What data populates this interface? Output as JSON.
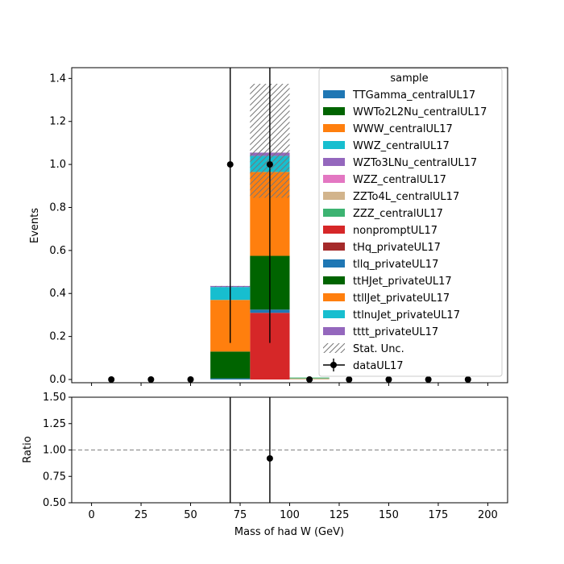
{
  "chart_data": {
    "type": "bar",
    "stacked": true,
    "xlabel": "Mass of had W (GeV)",
    "bin_edges": [
      0,
      20,
      40,
      60,
      80,
      100,
      120,
      140,
      160,
      180,
      200
    ],
    "x_ticks": [
      0,
      25,
      50,
      75,
      100,
      125,
      150,
      175,
      200
    ],
    "xlim": [
      -10,
      210
    ],
    "main": {
      "ylabel": "Events",
      "ylim": [
        -0.015,
        1.45
      ],
      "y_ticks": [
        "0.0",
        "0.2",
        "0.4",
        "0.6",
        "0.8",
        "1.0",
        "1.2",
        "1.4"
      ],
      "series": [
        {
          "name": "TTGamma_centralUL17",
          "color": "#1f77b4",
          "values": [
            0,
            0,
            0,
            0,
            0,
            0,
            0,
            0,
            0,
            0
          ]
        },
        {
          "name": "WWTo2L2Nu_centralUL17",
          "color": "#006400",
          "values": [
            0,
            0,
            0,
            0,
            0,
            0,
            0,
            0,
            0,
            0
          ]
        },
        {
          "name": "WWW_centralUL17",
          "color": "#ff7f0e",
          "values": [
            0,
            0,
            0,
            0,
            0,
            0,
            0,
            0,
            0,
            0
          ]
        },
        {
          "name": "WWZ_centralUL17",
          "color": "#17becf",
          "values": [
            0,
            0,
            0,
            0,
            0,
            0,
            0,
            0,
            0,
            0
          ]
        },
        {
          "name": "WZTo3LNu_centralUL17",
          "color": "#9467bd",
          "values": [
            0,
            0,
            0,
            0,
            0,
            0,
            0,
            0,
            0,
            0
          ]
        },
        {
          "name": "WZZ_centralUL17",
          "color": "#e377c2",
          "values": [
            0,
            0,
            0,
            0,
            0,
            0,
            0,
            0,
            0,
            0
          ]
        },
        {
          "name": "ZZTo4L_centralUL17",
          "color": "#d2b48c",
          "values": [
            0,
            0,
            0,
            0,
            0,
            0.005,
            0,
            0,
            0,
            0
          ]
        },
        {
          "name": "ZZZ_centralUL17",
          "color": "#3cb371",
          "values": [
            0,
            0,
            0,
            0,
            0,
            0.004,
            0,
            0,
            0,
            0
          ]
        },
        {
          "name": "nonpromptUL17",
          "color": "#d62728",
          "values": [
            0,
            0,
            0,
            0,
            0.31,
            0,
            0,
            0,
            0,
            0
          ]
        },
        {
          "name": "tHq_privateUL17",
          "color": "#a52a2a",
          "values": [
            0,
            0,
            0,
            0,
            0,
            0,
            0,
            0,
            0,
            0
          ]
        },
        {
          "name": "tllq_privateUL17",
          "color": "#1f77b4",
          "values": [
            0,
            0,
            0,
            0.005,
            0.015,
            0,
            0,
            0,
            0,
            0
          ]
        },
        {
          "name": "ttHJet_privateUL17",
          "color": "#006400",
          "values": [
            0,
            0,
            0,
            0.125,
            0.25,
            0,
            0,
            0,
            0,
            0
          ]
        },
        {
          "name": "ttllJet_privateUL17",
          "color": "#ff7f0e",
          "values": [
            0,
            0,
            0,
            0.24,
            0.39,
            0,
            0,
            0,
            0,
            0
          ]
        },
        {
          "name": "ttlnuJet_privateUL17",
          "color": "#17becf",
          "values": [
            0,
            0,
            0,
            0.06,
            0.075,
            0,
            0,
            0,
            0,
            0
          ]
        },
        {
          "name": "tttt_privateUL17",
          "color": "#9467bd",
          "values": [
            0,
            0,
            0,
            0.005,
            0.015,
            0,
            0,
            0,
            0,
            0
          ]
        }
      ],
      "stat_unc": {
        "name": "Stat. Unc.",
        "low": [
          0,
          0,
          0,
          0.43,
          0.845,
          0.009,
          0,
          0,
          0,
          0
        ],
        "high": [
          0,
          0,
          0,
          0.435,
          1.375,
          0.009,
          0,
          0,
          0,
          0
        ]
      },
      "data": {
        "name": "dataUL17",
        "x": [
          10,
          30,
          50,
          70,
          90,
          110,
          130,
          150,
          170,
          190
        ],
        "y": [
          0,
          0,
          0,
          1,
          1,
          0,
          0,
          0,
          0,
          0
        ],
        "err_low": [
          0,
          0,
          0,
          0.83,
          0.83,
          0,
          0,
          0,
          0,
          0
        ],
        "err_high": [
          0,
          0,
          0,
          2.3,
          2.3,
          0,
          0,
          0,
          0,
          0
        ]
      },
      "legend": {
        "title": "sample",
        "position": "upper right"
      }
    },
    "ratio": {
      "ylabel": "Ratio",
      "ylim": [
        0.5,
        1.5
      ],
      "y_ticks": [
        "0.50",
        "0.75",
        "1.00",
        "1.25",
        "1.50"
      ],
      "reference_line": 1.0,
      "points": [
        {
          "x": 90,
          "y": 0.92
        }
      ],
      "error_bars_x": [
        70,
        90
      ]
    }
  }
}
